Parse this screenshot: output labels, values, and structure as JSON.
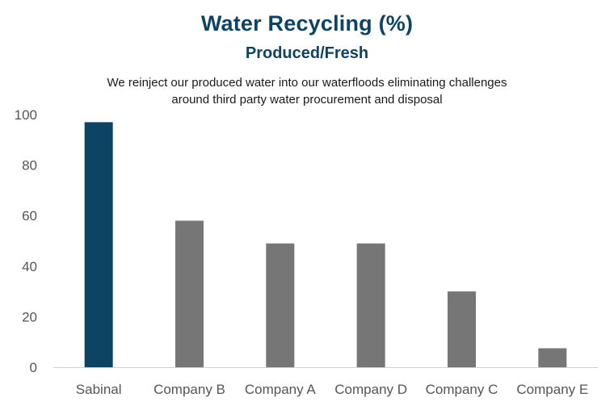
{
  "chart_data": {
    "type": "bar",
    "title": "Water Recycling (%)",
    "subtitle": "Produced/Fresh",
    "annotation": [
      "We reinject our produced water into our waterfloods eliminating challenges",
      "around third party water procurement and disposal"
    ],
    "categories": [
      "Sabinal",
      "Company B",
      "Company A",
      "Company D",
      "Company C",
      "Company E"
    ],
    "values": [
      97,
      58,
      49,
      49,
      30,
      7.5
    ],
    "ylim": [
      0,
      100
    ],
    "yticks": [
      0,
      20,
      40,
      60,
      80,
      100
    ],
    "grid": false,
    "legend": "none",
    "colors": {
      "highlight": "#0e4463",
      "default": "#767676",
      "axis": "#d0d0d0"
    },
    "highlight_category": "Sabinal"
  }
}
